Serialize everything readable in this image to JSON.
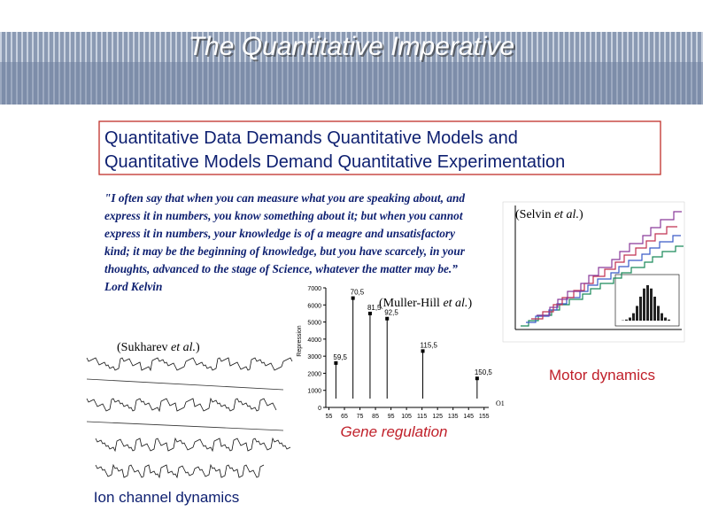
{
  "header": {
    "title": "The Quantitative Imperative"
  },
  "headline": {
    "lines": [
      "Quantitative Data Demands Quantitative Models and",
      "Quantitative Models Demand Quantitative Experimentation"
    ]
  },
  "quote": {
    "lines": [
      "\"I often say that when you can measure what you are speaking about, and",
      "express it in numbers, you know something about it; but when you cannot",
      "express it in numbers, your knowledge is of a meagre and unsatisfactory",
      "kind; it may be the beginning of knowledge, but you have scarcely, in your",
      "thoughts, advanced to the stage of Science, whatever the matter may be.”"
    ],
    "attribution": "Lord Kelvin"
  },
  "figures": [
    {
      "author": "(Selvin ",
      "etal": "et al.",
      "close": ")",
      "caption": "Motor dynamics"
    },
    {
      "author": "(Muller-Hill ",
      "etal": "et al.",
      "close": ")",
      "caption": "Gene regulation"
    },
    {
      "author": "(Sukharev ",
      "etal": "et al.",
      "close": ")",
      "caption": "Ion channel dynamics"
    }
  ],
  "gene_chart": {
    "ylabel": "Repression",
    "xlim": [
      53,
      158
    ],
    "ylim": [
      0,
      7000
    ],
    "yticks": [
      0,
      1000,
      2000,
      3000,
      4000,
      5000,
      6000,
      7000
    ],
    "xticks": [
      55,
      65,
      75,
      85,
      95,
      105,
      115,
      125,
      135,
      145,
      155
    ],
    "operator": "O1",
    "annotations": [
      {
        "x": 70.5,
        "y": 6400,
        "label": "70,5"
      },
      {
        "x": 81.5,
        "y": 5500,
        "label": "81,5"
      },
      {
        "x": 92.5,
        "y": 5200,
        "label": "92,5"
      },
      {
        "x": 59.5,
        "y": 2600,
        "label": "59,5"
      },
      {
        "x": 115.5,
        "y": 3300,
        "label": "115,5"
      },
      {
        "x": 150.5,
        "y": 1700,
        "label": "150,5"
      }
    ]
  }
}
